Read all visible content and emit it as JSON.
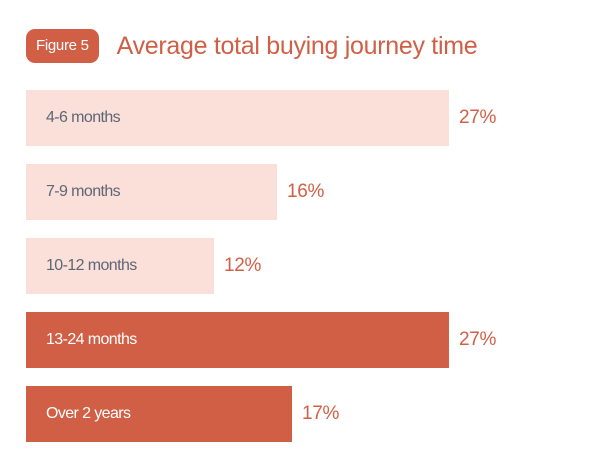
{
  "figure_badge": "Figure 5",
  "colors": {
    "accent": "#d05f45",
    "light_bar": "#fbe0d9",
    "light_text": "#5d6674",
    "dark_text": "#ffffff"
  },
  "chart_data": {
    "type": "bar",
    "orientation": "horizontal",
    "title": "Average total buying journey time",
    "categories": [
      "4-6 months",
      "7-9 months",
      "10-12 months",
      "13-24 months",
      "Over 2 years"
    ],
    "values": [
      27,
      16,
      12,
      27,
      17
    ],
    "value_labels": [
      "27%",
      "16%",
      "12%",
      "27%",
      "17%"
    ],
    "bar_styles": [
      "light",
      "light",
      "light",
      "dark",
      "dark"
    ],
    "unit": "%",
    "xlim": [
      0,
      27
    ]
  }
}
